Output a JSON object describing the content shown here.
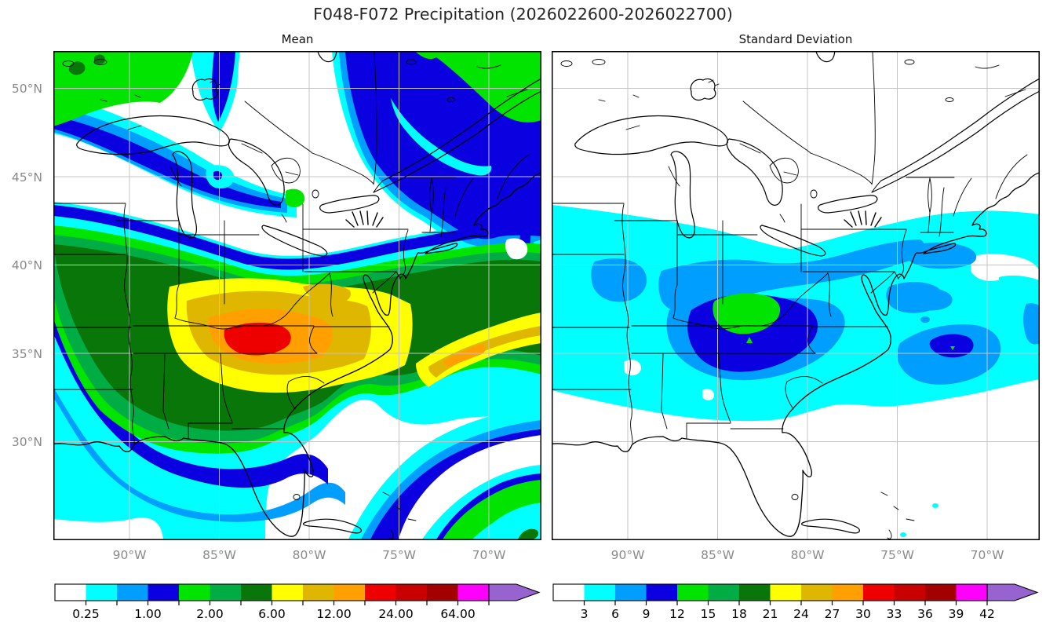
{
  "figure": {
    "title": "F048-F072 Precipitation (2026022600-2026022700)"
  },
  "panels": {
    "mean": {
      "title": "Mean"
    },
    "std": {
      "title": "Standard Deviation"
    }
  },
  "axes": {
    "lon_ticks": [
      "90°W",
      "85°W",
      "80°W",
      "75°W",
      "70°W"
    ],
    "lat_ticks": [
      "50°N",
      "45°N",
      "40°N",
      "35°N",
      "30°N"
    ],
    "lat_labels_shown_on_right_panel": false,
    "tick_label_color": "#8a8a8a",
    "grid_color": "#c4c4c4"
  },
  "palette": {
    "fill_colors": [
      "#ffffff",
      "#00ffff",
      "#009fff",
      "#0b00e0",
      "#00e400",
      "#00ad44",
      "#097609",
      "#ffff00",
      "#dfb700",
      "#ffa000",
      "#ef0000",
      "#c90000",
      "#a30000",
      "#ff00ff"
    ],
    "over_color": "#9663d0",
    "color_names": [
      "white",
      "cyan",
      "light-blue",
      "blue",
      "green",
      "medium-green",
      "dark-green",
      "yellow",
      "gold",
      "orange",
      "red",
      "dark-red",
      "darker-red",
      "magenta",
      "purple-over-arrow"
    ]
  },
  "colorbars": {
    "mean": {
      "tick_labels": [
        "0.25",
        "1.00",
        "2.00",
        "6.00",
        "12.00",
        "24.00",
        "64.00"
      ],
      "labels_on_every_other_boundary": true,
      "extend": "max"
    },
    "std": {
      "tick_labels": [
        "3",
        "6",
        "9",
        "12",
        "15",
        "18",
        "21",
        "24",
        "27",
        "30",
        "33",
        "36",
        "39",
        "42"
      ],
      "labels_on_every_other_boundary": false,
      "extend": "max"
    }
  },
  "chart_data": [
    {
      "type": "heatmap",
      "subtype": "filled-contour-map",
      "title": "Mean",
      "region": "Eastern North America (Great Lakes, Ohio Valley, Gulf and Atlantic coasts, Florida)",
      "x_ticks": [
        "90°W",
        "85°W",
        "80°W",
        "75°W",
        "70°W"
      ],
      "y_ticks": [
        "50°N",
        "45°N",
        "40°N",
        "35°N",
        "30°N"
      ],
      "labeled_levels": [
        0.25,
        1.0,
        2.0,
        6.0,
        12.0,
        24.0,
        64.0
      ],
      "colorbar_extends": "max (purple arrow)",
      "palette_order": [
        "white",
        "cyan",
        "light-blue",
        "blue",
        "green",
        "medium-green",
        "dark-green",
        "yellow",
        "gold",
        "orange",
        "red",
        "dark-red",
        "darker-red",
        "magenta",
        "purple(over)"
      ],
      "notable_features": [
        "red maximum (>24) centered near 36°N 84°W over Tennessee / southern Appalachians",
        "orange and gold ring around the red core; yellow (6-12) spans Tennessee, Kentucky, Virginia and the Carolinas to the coast",
        "secondary gold/orange streak offshore near 35-37°N, 67-71°W",
        "broad green band (≈1.5-6) across the Ohio Valley, Mid-Atlantic, and Gulf states",
        "blue/cyan bands (≈0.25-1.5) over the upper Great Lakes, eastern Canada, New England and along the Gulf coast, Florida and the Caribbean",
        "white (<0.25) over Wisconsin/Michigan, Florida peninsula and the subtropical Atlantic"
      ]
    },
    {
      "type": "heatmap",
      "subtype": "filled-contour-map",
      "title": "Standard Deviation",
      "region": "Eastern North America (same domain as Mean panel)",
      "x_ticks": [
        "90°W",
        "85°W",
        "80°W",
        "75°W",
        "70°W"
      ],
      "y_ticks": [
        "50°N",
        "45°N",
        "40°N",
        "35°N",
        "30°N"
      ],
      "labeled_levels": [
        3,
        6,
        9,
        12,
        15,
        18,
        21,
        24,
        27,
        30,
        33,
        36,
        39,
        42
      ],
      "colorbar_extends": "max (purple arrow)",
      "notable_features": [
        "green maximum (12-15) near 37.5°N 85°W over Kentucky",
        "dark blue area (9-12) over Kentucky/Tennessee plus a small blue spot offshore near 36°N 72°W",
        "light-blue (6-9) band from the Ohio Valley to the Mid-Atlantic with offshore patches",
        "cyan (3-6) region spanning the map width between about 31°N and 42°N",
        "white (<3) elsewhere"
      ]
    }
  ]
}
